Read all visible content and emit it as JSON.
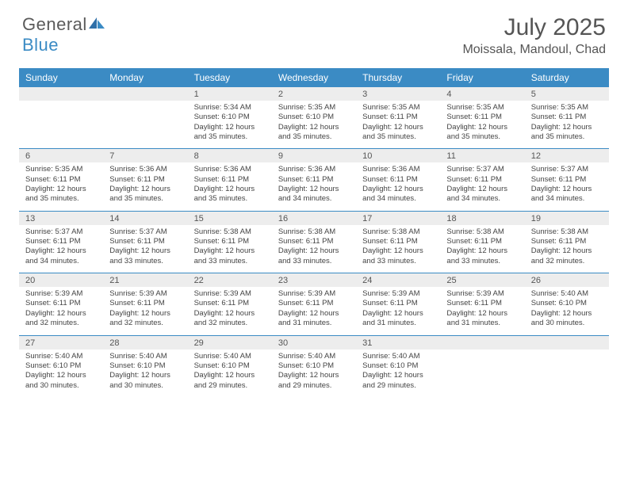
{
  "brand": {
    "part1": "General",
    "part2": "Blue"
  },
  "title": "July 2025",
  "location": "Moissala, Mandoul, Chad",
  "colors": {
    "accent": "#3b8bc4",
    "header_text": "#ffffff",
    "body_text": "#444444",
    "daynum_bg": "#ededed"
  },
  "day_names": [
    "Sunday",
    "Monday",
    "Tuesday",
    "Wednesday",
    "Thursday",
    "Friday",
    "Saturday"
  ],
  "weeks": [
    {
      "days": [
        null,
        null,
        {
          "n": "1",
          "sr": "5:34 AM",
          "ss": "6:10 PM",
          "dl": "12 hours and 35 minutes."
        },
        {
          "n": "2",
          "sr": "5:35 AM",
          "ss": "6:10 PM",
          "dl": "12 hours and 35 minutes."
        },
        {
          "n": "3",
          "sr": "5:35 AM",
          "ss": "6:11 PM",
          "dl": "12 hours and 35 minutes."
        },
        {
          "n": "4",
          "sr": "5:35 AM",
          "ss": "6:11 PM",
          "dl": "12 hours and 35 minutes."
        },
        {
          "n": "5",
          "sr": "5:35 AM",
          "ss": "6:11 PM",
          "dl": "12 hours and 35 minutes."
        }
      ]
    },
    {
      "days": [
        {
          "n": "6",
          "sr": "5:35 AM",
          "ss": "6:11 PM",
          "dl": "12 hours and 35 minutes."
        },
        {
          "n": "7",
          "sr": "5:36 AM",
          "ss": "6:11 PM",
          "dl": "12 hours and 35 minutes."
        },
        {
          "n": "8",
          "sr": "5:36 AM",
          "ss": "6:11 PM",
          "dl": "12 hours and 35 minutes."
        },
        {
          "n": "9",
          "sr": "5:36 AM",
          "ss": "6:11 PM",
          "dl": "12 hours and 34 minutes."
        },
        {
          "n": "10",
          "sr": "5:36 AM",
          "ss": "6:11 PM",
          "dl": "12 hours and 34 minutes."
        },
        {
          "n": "11",
          "sr": "5:37 AM",
          "ss": "6:11 PM",
          "dl": "12 hours and 34 minutes."
        },
        {
          "n": "12",
          "sr": "5:37 AM",
          "ss": "6:11 PM",
          "dl": "12 hours and 34 minutes."
        }
      ]
    },
    {
      "days": [
        {
          "n": "13",
          "sr": "5:37 AM",
          "ss": "6:11 PM",
          "dl": "12 hours and 34 minutes."
        },
        {
          "n": "14",
          "sr": "5:37 AM",
          "ss": "6:11 PM",
          "dl": "12 hours and 33 minutes."
        },
        {
          "n": "15",
          "sr": "5:38 AM",
          "ss": "6:11 PM",
          "dl": "12 hours and 33 minutes."
        },
        {
          "n": "16",
          "sr": "5:38 AM",
          "ss": "6:11 PM",
          "dl": "12 hours and 33 minutes."
        },
        {
          "n": "17",
          "sr": "5:38 AM",
          "ss": "6:11 PM",
          "dl": "12 hours and 33 minutes."
        },
        {
          "n": "18",
          "sr": "5:38 AM",
          "ss": "6:11 PM",
          "dl": "12 hours and 33 minutes."
        },
        {
          "n": "19",
          "sr": "5:38 AM",
          "ss": "6:11 PM",
          "dl": "12 hours and 32 minutes."
        }
      ]
    },
    {
      "days": [
        {
          "n": "20",
          "sr": "5:39 AM",
          "ss": "6:11 PM",
          "dl": "12 hours and 32 minutes."
        },
        {
          "n": "21",
          "sr": "5:39 AM",
          "ss": "6:11 PM",
          "dl": "12 hours and 32 minutes."
        },
        {
          "n": "22",
          "sr": "5:39 AM",
          "ss": "6:11 PM",
          "dl": "12 hours and 32 minutes."
        },
        {
          "n": "23",
          "sr": "5:39 AM",
          "ss": "6:11 PM",
          "dl": "12 hours and 31 minutes."
        },
        {
          "n": "24",
          "sr": "5:39 AM",
          "ss": "6:11 PM",
          "dl": "12 hours and 31 minutes."
        },
        {
          "n": "25",
          "sr": "5:39 AM",
          "ss": "6:11 PM",
          "dl": "12 hours and 31 minutes."
        },
        {
          "n": "26",
          "sr": "5:40 AM",
          "ss": "6:10 PM",
          "dl": "12 hours and 30 minutes."
        }
      ]
    },
    {
      "days": [
        {
          "n": "27",
          "sr": "5:40 AM",
          "ss": "6:10 PM",
          "dl": "12 hours and 30 minutes."
        },
        {
          "n": "28",
          "sr": "5:40 AM",
          "ss": "6:10 PM",
          "dl": "12 hours and 30 minutes."
        },
        {
          "n": "29",
          "sr": "5:40 AM",
          "ss": "6:10 PM",
          "dl": "12 hours and 29 minutes."
        },
        {
          "n": "30",
          "sr": "5:40 AM",
          "ss": "6:10 PM",
          "dl": "12 hours and 29 minutes."
        },
        {
          "n": "31",
          "sr": "5:40 AM",
          "ss": "6:10 PM",
          "dl": "12 hours and 29 minutes."
        },
        null,
        null
      ]
    }
  ],
  "labels": {
    "sunrise": "Sunrise:",
    "sunset": "Sunset:",
    "daylight": "Daylight:"
  }
}
